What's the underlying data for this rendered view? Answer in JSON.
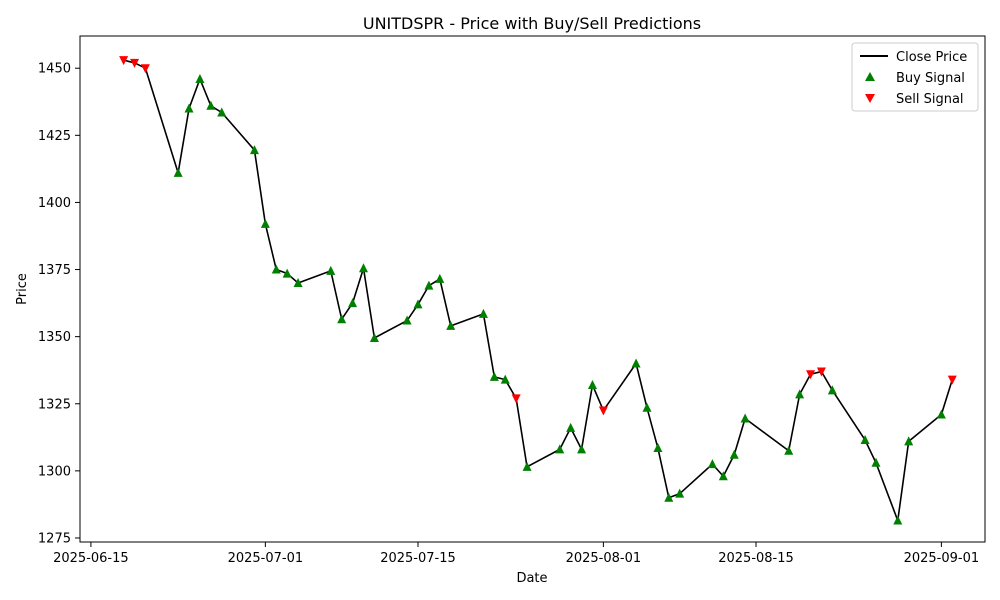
{
  "chart_data": {
    "type": "line",
    "title": "UNITDSPR - Price with Buy/Sell Predictions",
    "xlabel": "Date",
    "ylabel": "Price",
    "xlim": [
      "2025-06-14",
      "2025-09-05"
    ],
    "ylim": [
      1273.5,
      1462
    ],
    "x_ticks": [
      "2025-06-15",
      "2025-07-01",
      "2025-07-15",
      "2025-08-01",
      "2025-08-15",
      "2025-09-01"
    ],
    "y_ticks": [
      1275,
      1300,
      1325,
      1350,
      1375,
      1400,
      1425,
      1450
    ],
    "grid": false,
    "legend_position": "top-right",
    "colors": {
      "close": "#000000",
      "buy": "#008000",
      "sell": "#ff0000"
    },
    "legend": [
      "Close Price",
      "Buy Signal",
      "Sell Signal"
    ],
    "series": [
      {
        "name": "Close Price",
        "style": "line",
        "x": [
          "2025-06-18",
          "2025-06-19",
          "2025-06-20",
          "2025-06-23",
          "2025-06-24",
          "2025-06-25",
          "2025-06-26",
          "2025-06-27",
          "2025-06-30",
          "2025-07-01",
          "2025-07-02",
          "2025-07-03",
          "2025-07-04",
          "2025-07-07",
          "2025-07-08",
          "2025-07-09",
          "2025-07-10",
          "2025-07-11",
          "2025-07-14",
          "2025-07-15",
          "2025-07-16",
          "2025-07-17",
          "2025-07-18",
          "2025-07-21",
          "2025-07-22",
          "2025-07-23",
          "2025-07-24",
          "2025-07-25",
          "2025-07-28",
          "2025-07-29",
          "2025-07-30",
          "2025-07-31",
          "2025-08-01",
          "2025-08-04",
          "2025-08-05",
          "2025-08-06",
          "2025-08-07",
          "2025-08-08",
          "2025-08-11",
          "2025-08-12",
          "2025-08-13",
          "2025-08-14",
          "2025-08-18",
          "2025-08-19",
          "2025-08-20",
          "2025-08-21",
          "2025-08-22",
          "2025-08-25",
          "2025-08-26",
          "2025-08-28",
          "2025-08-29",
          "2025-09-01",
          "2025-09-02"
        ],
        "values": [
          1453,
          1452,
          1450,
          1411,
          1435,
          1446,
          1436,
          1433.5,
          1419.5,
          1392,
          1375,
          1373.5,
          1370,
          1374.5,
          1356.5,
          1362.5,
          1375.5,
          1349.5,
          1356,
          1362,
          1369,
          1371.5,
          1354,
          1358.5,
          1335,
          1334,
          1327,
          1301.5,
          1308,
          1316,
          1308,
          1332,
          1322.5,
          1340,
          1323.5,
          1308.5,
          1290,
          1291.5,
          1302.5,
          1298,
          1306,
          1319.5,
          1307.5,
          1328.5,
          1336,
          1337,
          1330,
          1311.5,
          1303,
          1281.5,
          1311,
          1321,
          1334
        ]
      },
      {
        "name": "Buy Signal",
        "style": "marker-up",
        "x": [
          "2025-06-23",
          "2025-06-24",
          "2025-06-25",
          "2025-06-26",
          "2025-06-27",
          "2025-06-30",
          "2025-07-01",
          "2025-07-02",
          "2025-07-03",
          "2025-07-04",
          "2025-07-07",
          "2025-07-08",
          "2025-07-09",
          "2025-07-10",
          "2025-07-11",
          "2025-07-14",
          "2025-07-15",
          "2025-07-16",
          "2025-07-17",
          "2025-07-18",
          "2025-07-21",
          "2025-07-22",
          "2025-07-23",
          "2025-07-25",
          "2025-07-28",
          "2025-07-29",
          "2025-07-30",
          "2025-07-31",
          "2025-08-04",
          "2025-08-05",
          "2025-08-06",
          "2025-08-07",
          "2025-08-08",
          "2025-08-11",
          "2025-08-12",
          "2025-08-13",
          "2025-08-14",
          "2025-08-18",
          "2025-08-19",
          "2025-08-22",
          "2025-08-25",
          "2025-08-26",
          "2025-08-28",
          "2025-08-29",
          "2025-09-01"
        ],
        "values": [
          1411,
          1435,
          1446,
          1436,
          1433.5,
          1419.5,
          1392,
          1375,
          1373.5,
          1370,
          1374.5,
          1356.5,
          1362.5,
          1375.5,
          1349.5,
          1356,
          1362,
          1369,
          1371.5,
          1354,
          1358.5,
          1335,
          1334,
          1301.5,
          1308,
          1316,
          1308,
          1332,
          1340,
          1323.5,
          1308.5,
          1290,
          1291.5,
          1302.5,
          1298,
          1306,
          1319.5,
          1307.5,
          1328.5,
          1330,
          1311.5,
          1303,
          1281.5,
          1311,
          1321
        ]
      },
      {
        "name": "Sell Signal",
        "style": "marker-down",
        "x": [
          "2025-06-18",
          "2025-06-19",
          "2025-06-20",
          "2025-07-24",
          "2025-08-01",
          "2025-08-20",
          "2025-08-21",
          "2025-09-02"
        ],
        "values": [
          1453,
          1452,
          1450,
          1327,
          1322.5,
          1336,
          1337,
          1334
        ]
      }
    ]
  }
}
